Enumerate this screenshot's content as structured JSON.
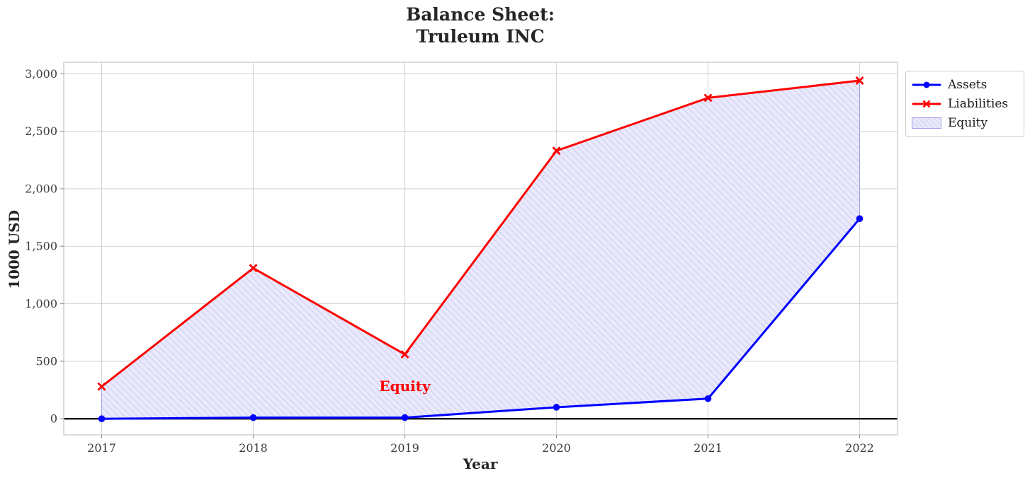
{
  "title": {
    "text": "Balance Sheet:\nTruleum INC"
  },
  "chart_data": {
    "type": "line",
    "title": "Balance Sheet:\nTruleum INC",
    "xlabel": "Year",
    "ylabel": "1000 USD",
    "x": [
      2017,
      2018,
      2019,
      2020,
      2021,
      2022
    ],
    "series": [
      {
        "name": "Assets",
        "color": "#0000ff",
        "marker": "circle",
        "line_width": 3,
        "values": [
          0,
          10,
          10,
          100,
          175,
          1740
        ]
      },
      {
        "name": "Liabilities",
        "color": "#ff0000",
        "marker": "x",
        "line_width": 3,
        "values": [
          280,
          1310,
          560,
          2330,
          2790,
          2940
        ]
      }
    ],
    "fill_between": {
      "name": "Equity",
      "between": [
        "Assets",
        "Liabilities"
      ],
      "facecolor": "#e9e9fb",
      "hatch": "//",
      "hatchcolor": "#cbcbf2",
      "edgecolor": "#a0a0e8"
    },
    "annotation": {
      "text": "Equity",
      "x": 2019,
      "y": 287,
      "color": "#ff0000"
    },
    "xlim": [
      2016.75,
      2022.25
    ],
    "ylim": [
      -140,
      3100
    ],
    "xticks": {
      "values": [
        2017,
        2018,
        2019,
        2020,
        2021,
        2022
      ],
      "labels": [
        "2017",
        "2018",
        "2019",
        "2020",
        "2021",
        "2022"
      ]
    },
    "yticks": {
      "values": [
        0,
        500,
        1000,
        1500,
        2000,
        2500,
        3000
      ],
      "labels": [
        "0",
        "500",
        "1,000",
        "1,500",
        "2,000",
        "2,500",
        "3,000"
      ]
    },
    "grid": true,
    "grid_color": "#d4d4d4",
    "zero_line": {
      "show": true,
      "color": "#000000"
    },
    "spine_color": "#cccccc",
    "tick_color": "#8f8f8f",
    "tick_label_color": "#3c3c3c",
    "legend": {
      "position": "outside-top-right",
      "entries": [
        "Assets",
        "Liabilities",
        "Equity"
      ]
    }
  }
}
